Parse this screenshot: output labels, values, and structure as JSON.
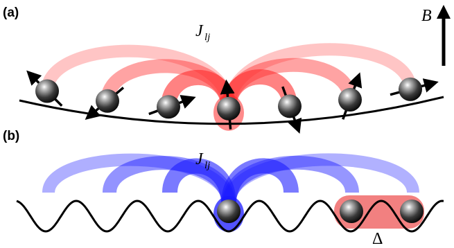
{
  "panels": {
    "a": {
      "label": "(a)",
      "coupling_symbol": "J",
      "coupling_subscript": "lj",
      "field_symbol": "B"
    },
    "b": {
      "label": "(b)",
      "coupling_symbol": "J",
      "coupling_subscript": "lj",
      "gap_symbol": "Δ"
    }
  },
  "colors": {
    "coupling_a": "#ff2a2a",
    "coupling_b": "#1a1aff",
    "gap_band": "#f06a6a",
    "ion_dark": "#000000",
    "ion_light": "#d0d0d0",
    "line": "#000000"
  },
  "icons": {
    "ion": "sphere-icon",
    "spin": "arrow-icon",
    "field": "up-arrow-icon"
  },
  "spin_angles_deg_a": [
    135,
    220,
    20,
    95,
    290,
    70,
    15
  ]
}
